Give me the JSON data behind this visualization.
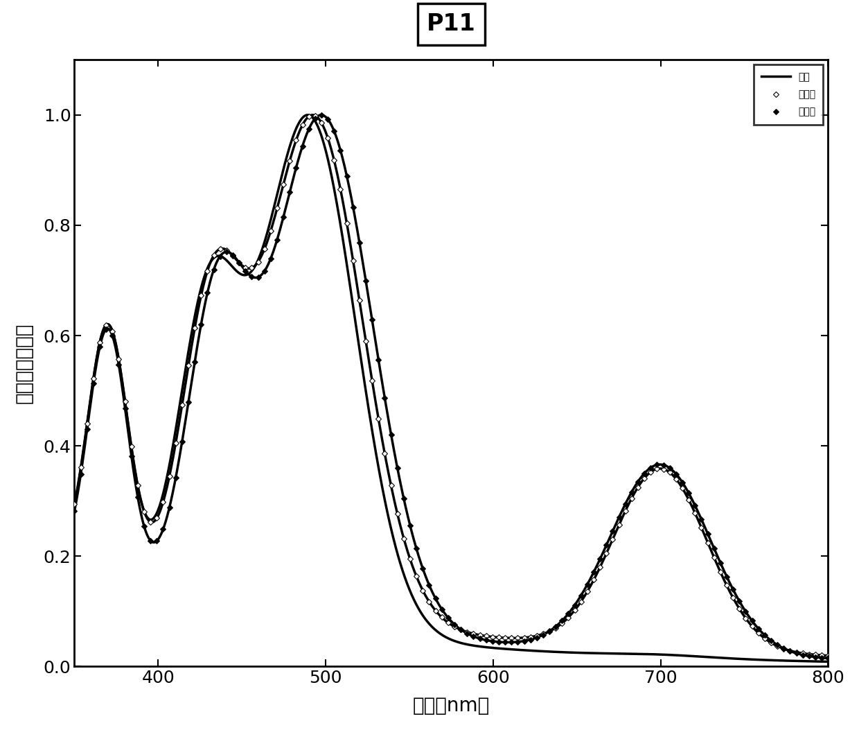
{
  "title": "P11",
  "xlabel": "波长（nm）",
  "ylabel": "归一化的吸收值",
  "xlim": [
    350,
    800
  ],
  "ylim": [
    0.0,
    1.1
  ],
  "yticks": [
    0.0,
    0.2,
    0.4,
    0.6,
    0.8,
    1.0
  ],
  "xticks": [
    400,
    500,
    600,
    700,
    800
  ],
  "legend_labels": [
    "甲苯",
    "苯甲醚",
    "苯甲腥"
  ],
  "line_color": "#000000",
  "background_color": "#ffffff",
  "font_size_axis": 20,
  "font_size_title": 24,
  "font_size_legend": 18,
  "font_size_ticks": 18,
  "curve1": {
    "peak1_mu": 370,
    "peak1_sigma": 12,
    "peak1_amp": 0.5,
    "peak2_mu": 430,
    "peak2_sigma": 18,
    "peak2_amp": 0.57,
    "peak3_mu": 490,
    "peak3_sigma": 28,
    "peak3_amp": 1.0,
    "nir_mu": 700,
    "nir_sigma": 30,
    "nir_amp": 0.005,
    "base_amp": 0.19,
    "base_decay": 150
  },
  "curve2": {
    "peak1_mu": 370,
    "peak1_sigma": 12,
    "peak1_amp": 0.5,
    "peak2_mu": 432,
    "peak2_sigma": 18,
    "peak2_amp": 0.57,
    "peak3_mu": 493,
    "peak3_sigma": 29,
    "peak3_amp": 1.0,
    "nir_mu": 700,
    "nir_sigma": 28,
    "nir_amp": 0.36,
    "base_amp": 0.2,
    "base_decay": 200
  },
  "curve3": {
    "peak1_mu": 370,
    "peak1_sigma": 12,
    "peak1_amp": 0.5,
    "peak2_mu": 435,
    "peak2_sigma": 18,
    "peak2_amp": 0.57,
    "peak3_mu": 498,
    "peak3_sigma": 30,
    "peak3_amp": 1.0,
    "nir_mu": 700,
    "nir_sigma": 30,
    "nir_amp": 0.37,
    "base_amp": 0.18,
    "base_decay": 180
  },
  "n_markers": 120,
  "marker_size": 4
}
